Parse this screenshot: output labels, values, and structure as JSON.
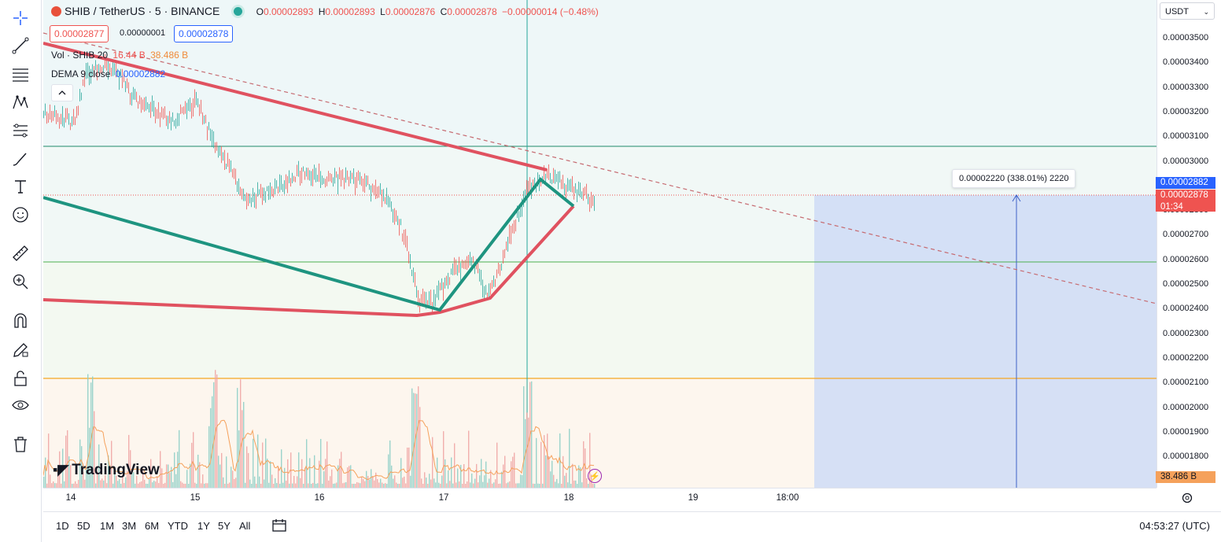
{
  "symbol": {
    "icon": "shib-coin-icon",
    "title": "SHIB / TetherUS · 5 · BINANCE",
    "o_label": "O",
    "o": "0.00002893",
    "h_label": "H",
    "h": "0.00002893",
    "l_label": "L",
    "l": "0.00002876",
    "c_label": "C",
    "c": "0.00002878",
    "change": "−0.00000014 (−0.48%)"
  },
  "trade": {
    "sell": "0.00002877",
    "spread": "0.00000001",
    "buy": "0.00002878"
  },
  "indicators": {
    "vol_label": "Vol · SHIB 20",
    "vol_value1": "16.44 B",
    "vol_value2": "38.486 B",
    "dema_label": "DEMA 9 close",
    "dema_value": "0.00002882"
  },
  "currency_select": "USDT",
  "price_axis": {
    "ticks": [
      "0.00003500",
      "0.00003400",
      "0.00003300",
      "0.00003200",
      "0.00003100",
      "0.00003000",
      "0.00002900",
      "0.00002800",
      "0.00002700",
      "0.00002600",
      "0.00002500",
      "0.00002400",
      "0.00002300",
      "0.00002200",
      "0.00002100",
      "0.00002000",
      "0.00001900",
      "0.00001800"
    ],
    "dema_tag": "0.00002882",
    "last_price_tag": "0.00002878",
    "countdown": "01:34",
    "volume_tag": "38.486 B"
  },
  "time_axis": {
    "ticks": [
      "14",
      "15",
      "16",
      "17",
      "18",
      "19",
      "18:00"
    ]
  },
  "measure_label": "0.00002220 (338.01%) 2220",
  "bottom": {
    "ranges": [
      "1D",
      "5D",
      "1M",
      "3M",
      "6M",
      "YTD",
      "1Y",
      "5Y",
      "All"
    ],
    "clock": "04:53:27 (UTC)"
  },
  "watermark": "TradingView",
  "colors": {
    "up": "#26a69a",
    "down": "#ef5350",
    "accent": "#2962ff",
    "red_line": "#e05260",
    "green_line": "#1e9480"
  },
  "tools": [
    "crosshair-icon",
    "trend-line-icon",
    "fib-icon",
    "pattern-icon",
    "prediction-icon",
    "brush-icon",
    "text-icon",
    "emoji-icon",
    "ruler-icon",
    "zoom-icon",
    "magnet-icon",
    "lock-draw-icon",
    "unlock-icon",
    "eye-icon",
    "trash-icon"
  ]
}
